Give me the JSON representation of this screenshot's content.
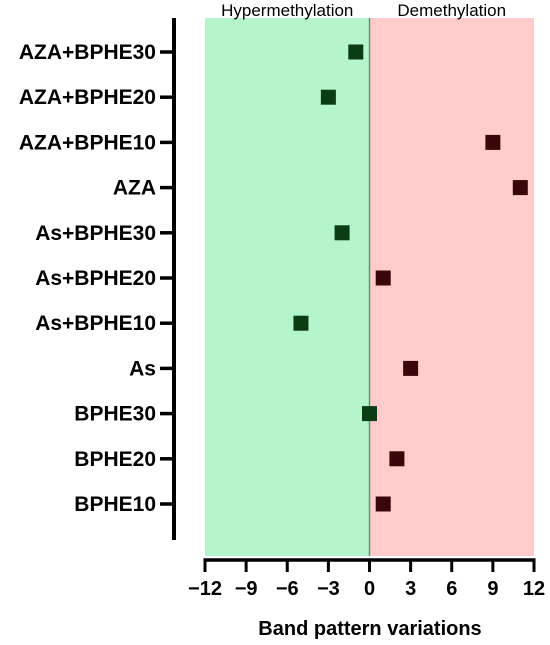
{
  "chart_data": {
    "type": "scatter",
    "orientation": "horizontal",
    "categories": [
      "AZA+BPHE30",
      "AZA+BPHE20",
      "AZA+BPHE10",
      "AZA",
      "As+BPHE30",
      "As+BPHE20",
      "As+BPHE10",
      "As",
      "BPHE30",
      "BPHE20",
      "BPHE10"
    ],
    "values": [
      -1,
      -3,
      9,
      11,
      -2,
      1,
      -5,
      3,
      0,
      2,
      1
    ],
    "xlabel": "Band pattern variations",
    "xlim": [
      -12,
      12
    ],
    "xticks": [
      -12,
      -9,
      -6,
      -3,
      0,
      3,
      6,
      9,
      12
    ],
    "xtick_labels": [
      "−12",
      "−9",
      "−6",
      "−3",
      "0",
      "3",
      "6",
      "9",
      "12"
    ],
    "regions": [
      {
        "label": "Hypermethylation",
        "from": -12,
        "to": 0,
        "color": "#b5f5cc"
      },
      {
        "label": "Demethylation",
        "from": 0,
        "to": 12,
        "color": "#ffcccb"
      }
    ],
    "marker_colors": {
      "negative": "#0b3d14",
      "positive": "#3a0608"
    },
    "grid": false
  }
}
